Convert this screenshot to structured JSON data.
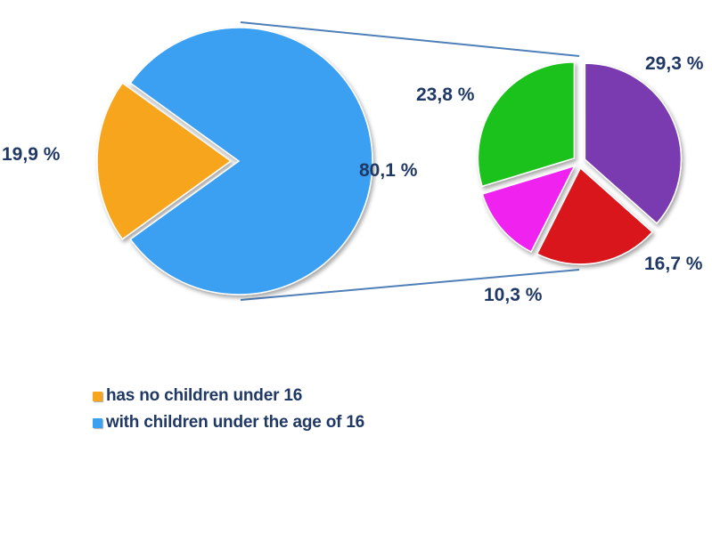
{
  "chart_data": {
    "type": "pie",
    "main_pie": {
      "slices": [
        {
          "label": "has no children under 16",
          "value": 19.9,
          "display": "19,9 %",
          "color": "#f7a51c"
        },
        {
          "label": "with children under the age of 16",
          "value": 80.1,
          "display": "80,1 %",
          "color": "#3aa0f2"
        }
      ]
    },
    "sub_pie": {
      "slices": [
        {
          "value": 29.3,
          "display": "29,3 %",
          "color": "#7a3ab0"
        },
        {
          "value": 16.7,
          "display": "16,7 %",
          "color": "#d9141a"
        },
        {
          "value": 10.3,
          "display": "10,3 %",
          "color": "#f020f0"
        },
        {
          "value": 23.8,
          "display": "23,8 %",
          "color": "#1ec21e"
        }
      ]
    },
    "legend": {
      "placement": "bottom-left",
      "entries": [
        {
          "label": "has no children under 16",
          "color": "#f7a51c"
        },
        {
          "label": "with children under the age of 16",
          "color": "#3aa0f2"
        }
      ]
    }
  }
}
